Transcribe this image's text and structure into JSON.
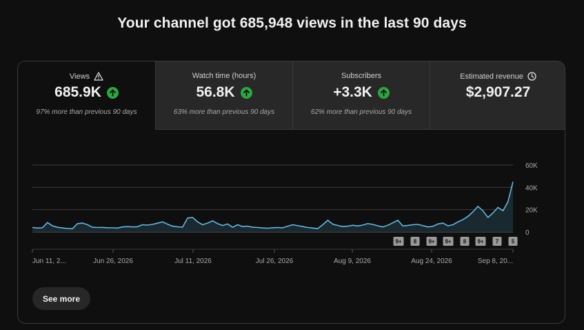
{
  "headline": "Your channel got 685,948 views in the last 90 days",
  "tabs": [
    {
      "title": "Views",
      "value": "685.9K",
      "sub": "97% more than previous 90 days",
      "icon": "warning-icon",
      "trend": "up"
    },
    {
      "title": "Watch time (hours)",
      "value": "56.8K",
      "sub": "63% more than previous 90 days",
      "trend": "up"
    },
    {
      "title": "Subscribers",
      "value": "+3.3K",
      "sub": "62% more than previous 90 days",
      "trend": "up"
    },
    {
      "title": "Estimated revenue",
      "value": "$2,907.27",
      "sub": "",
      "icon": "clock-icon"
    }
  ],
  "colors": {
    "accent_line": "#65b8de",
    "up": "#2ba640",
    "grid": "#3d3d3d"
  },
  "chart_data": {
    "type": "area",
    "title": "",
    "xlabel": "",
    "ylabel": "",
    "ylim": [
      0,
      60000
    ],
    "y_ticks": [
      "60K",
      "40K",
      "20K",
      "0"
    ],
    "x_tick_labels": [
      "Jun 11, 2...",
      "Jun 26, 2026",
      "Jul 11, 2026",
      "Jul 26, 2026",
      "Aug 9, 2026",
      "Aug 24, 2026",
      "Sep 8, 20..."
    ],
    "series": [
      {
        "values": [
          4000,
          3500,
          3800,
          8500,
          5500,
          4200,
          3600,
          3100,
          2900,
          7500,
          8000,
          6500,
          4200,
          4000,
          4100,
          3800,
          3700,
          3500,
          4500,
          4800,
          4500,
          4700,
          6500,
          6200,
          6800,
          7900,
          9000,
          7000,
          5200,
          4600,
          4300,
          12500,
          13000,
          9000,
          6500,
          8000,
          10000,
          7500,
          5800,
          7200,
          4200,
          6500,
          4800,
          5200,
          4200,
          4000,
          3600,
          3400,
          3800,
          4000,
          3800,
          5200,
          6500,
          5600,
          4800,
          4000,
          3500,
          3000,
          6500,
          10500,
          7000,
          5800,
          4800,
          5200,
          6000,
          5400,
          6200,
          7500,
          6800,
          5500,
          4500,
          6000,
          8200,
          10500,
          5400,
          5800,
          6500,
          6800,
          5600,
          4500,
          5000,
          7200,
          8000,
          5500,
          6500,
          9000,
          11000,
          14000,
          18000,
          23000,
          19000,
          13000,
          17000,
          22000,
          19000,
          27000,
          45000
        ]
      }
    ],
    "badges": [
      "9+",
      "8",
      "9+",
      "9+",
      "8",
      "9+",
      "7",
      "5"
    ]
  },
  "see_more_label": "See more"
}
